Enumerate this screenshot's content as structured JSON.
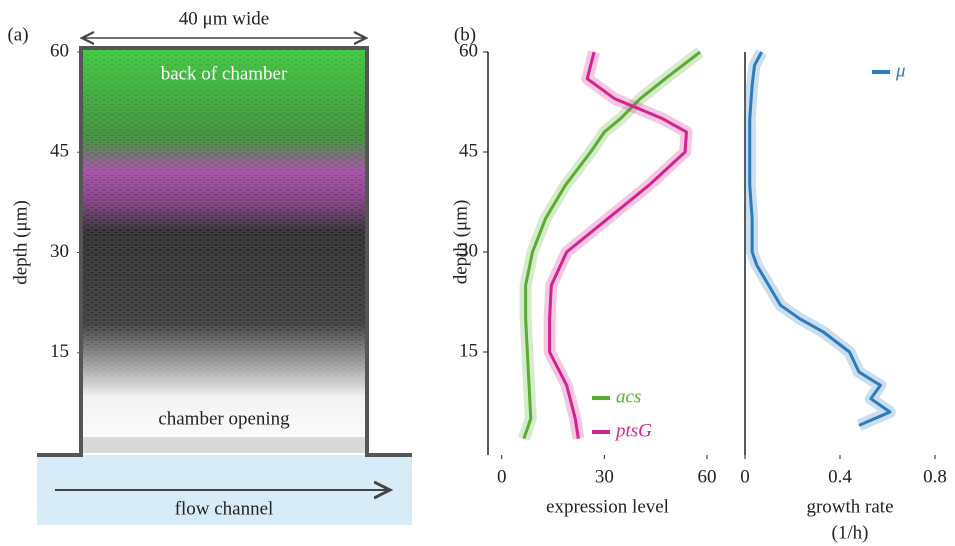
{
  "chart_data": [
    {
      "type": "image",
      "panel_label": "(a)",
      "title": "40 μm wide",
      "ylabel": "depth (μm)",
      "ylim": [
        0,
        60
      ],
      "yticks": [
        15,
        30,
        45,
        60
      ],
      "annotations": [
        "back of chamber",
        "chamber opening",
        "flow channel"
      ]
    },
    {
      "type": "line",
      "panel_label": "(b)",
      "ylabel": "depth (μm)",
      "xlabel": "expression level",
      "xlim": [
        -4,
        60
      ],
      "xticks": [
        0,
        30,
        60
      ],
      "ylim": [
        0,
        60
      ],
      "yticks": [
        15,
        30,
        45,
        60
      ],
      "y": [
        2,
        5,
        10,
        15,
        20,
        25,
        30,
        35,
        40,
        45,
        48,
        50,
        53,
        56,
        60
      ],
      "series": [
        {
          "name": "acs",
          "color": "#5aac32",
          "values": [
            6.5,
            8.5,
            8,
            7.5,
            7,
            7,
            9,
            12.8,
            18.6,
            26,
            30,
            34.7,
            40.5,
            47.8,
            58
          ]
        },
        {
          "name": "ptsG",
          "color": "#d3238f",
          "values": [
            22.4,
            21.5,
            19,
            14,
            14,
            14.5,
            19,
            31,
            43,
            53.6,
            54,
            47,
            33,
            25,
            27
          ]
        }
      ],
      "legend": "lower right"
    },
    {
      "type": "line",
      "xlabel": [
        "growth rate",
        "(1/h)"
      ],
      "xlim": [
        0,
        0.8
      ],
      "xticks": [
        0,
        0.4,
        0.8
      ],
      "ylim": [
        0,
        60
      ],
      "y": [
        4,
        6,
        8,
        10,
        12,
        15,
        18,
        20,
        22,
        25,
        28,
        30,
        35,
        40,
        45,
        50,
        55,
        58,
        60
      ],
      "series": [
        {
          "name": "μ",
          "color": "#2b7bbd",
          "values": [
            0.48,
            0.61,
            0.53,
            0.57,
            0.48,
            0.44,
            0.33,
            0.23,
            0.15,
            0.1,
            0.05,
            0.03,
            0.03,
            0.02,
            0.02,
            0.02,
            0.03,
            0.04,
            0.07
          ]
        }
      ],
      "legend": "upper right"
    }
  ]
}
